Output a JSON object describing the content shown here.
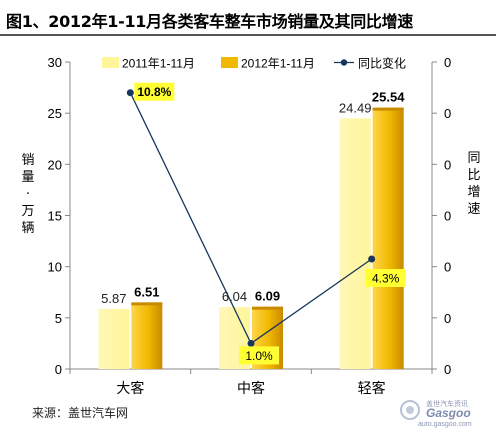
{
  "title": "图1、2012年1-11月各类客车整车市场销量及其同比增速",
  "source": "来源：盖世汽车网",
  "watermark": {
    "brand": "Gasgoo",
    "tagline": "盖世汽车资讯",
    "url": "auto.gasgoo.com"
  },
  "colors": {
    "bar2011": "#fff59a",
    "bar2012": "#f0b800",
    "bar2012_dark": "#c98a00",
    "line": "#17375e",
    "label_box": "#ffff33"
  },
  "chart_data": {
    "type": "bar",
    "categories": [
      "大客",
      "中客",
      "轻客"
    ],
    "series": [
      {
        "name": "2011年1-11月",
        "type": "bar",
        "values": [
          5.87,
          6.04,
          24.49
        ]
      },
      {
        "name": "2012年1-11月",
        "type": "bar",
        "values": [
          6.51,
          6.09,
          25.54
        ]
      },
      {
        "name": "同比变化",
        "type": "line",
        "axis": "right",
        "values": [
          10.8,
          1.0,
          4.3
        ],
        "labels": [
          "10.8%",
          "1.0%",
          "4.3%"
        ]
      }
    ],
    "ylabel": "销量：万辆",
    "ylim": [
      0,
      30
    ],
    "yticks": [
      0,
      5,
      10,
      15,
      20,
      25,
      30
    ],
    "y2label": "同比增速",
    "y2_tick_labels": [
      "0",
      "0",
      "0",
      "0",
      "0",
      "0",
      "0"
    ],
    "y2lim": [
      0,
      12
    ],
    "legend_position": "top",
    "grid": false
  }
}
